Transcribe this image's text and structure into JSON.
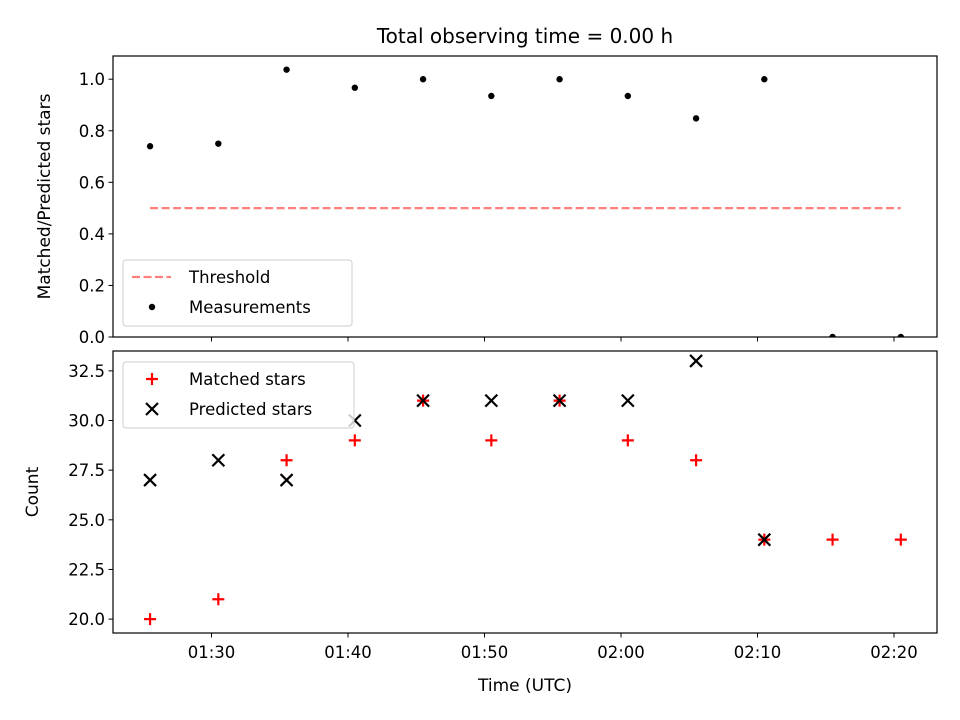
{
  "chart_data": [
    {
      "type": "scatter",
      "title": "Total observing time = 0.00 h",
      "xlabel": "",
      "ylabel": "Matched/Predicted stars",
      "ylim": [
        0,
        1.09
      ],
      "yticks": [
        "0.0",
        "0.2",
        "0.4",
        "0.6",
        "0.8",
        "1.0"
      ],
      "ytick_values": [
        0,
        0.2,
        0.4,
        0.6,
        0.8,
        1.0
      ],
      "legend": {
        "placement": "lower-left",
        "entries": [
          "Threshold",
          "Measurements"
        ]
      },
      "series": [
        {
          "name": "Threshold",
          "kind": "dashed-line",
          "color": "#ff7f7f",
          "x": [
            "01:25:30",
            "02:20:30"
          ],
          "y": [
            0.5,
            0.5
          ]
        },
        {
          "name": "Measurements",
          "kind": "dot",
          "color": "#000000",
          "x": [
            "01:25:30",
            "01:30:30",
            "01:35:30",
            "01:40:30",
            "01:45:30",
            "01:50:30",
            "01:55:30",
            "02:00:30",
            "02:05:30",
            "02:10:30",
            "02:15:30",
            "02:20:30"
          ],
          "y": [
            0.74,
            0.75,
            1.037,
            0.967,
            1.0,
            0.935,
            1.0,
            0.935,
            0.848,
            1.0,
            0.0,
            0.0
          ]
        }
      ]
    },
    {
      "type": "scatter",
      "title": "",
      "xlabel": "Time (UTC)",
      "ylabel": "Count",
      "ylim": [
        19.3,
        33.5
      ],
      "yticks": [
        "20.0",
        "22.5",
        "25.0",
        "27.5",
        "30.0",
        "32.5"
      ],
      "ytick_values": [
        20.0,
        22.5,
        25.0,
        27.5,
        30.0,
        32.5
      ],
      "xticks": [
        "01:30",
        "01:40",
        "01:50",
        "02:00",
        "02:10",
        "02:20"
      ],
      "xtick_values": [
        "01:30",
        "01:40",
        "01:50",
        "02:00",
        "02:10",
        "02:20"
      ],
      "legend": {
        "placement": "top-left",
        "entries": [
          "Matched stars",
          "Predicted stars"
        ]
      },
      "series": [
        {
          "name": "Matched stars",
          "kind": "plus",
          "color": "#ff0000",
          "x": [
            "01:25:30",
            "01:30:30",
            "01:35:30",
            "01:40:30",
            "01:45:30",
            "01:50:30",
            "01:55:30",
            "02:00:30",
            "02:05:30",
            "02:10:30",
            "02:15:30",
            "02:20:30"
          ],
          "y": [
            20,
            21,
            28,
            29,
            31,
            29,
            31,
            29,
            28,
            24,
            24,
            24
          ]
        },
        {
          "name": "Predicted stars",
          "kind": "x",
          "color": "#000000",
          "x": [
            "01:25:30",
            "01:30:30",
            "01:35:30",
            "01:40:30",
            "01:45:30",
            "01:50:30",
            "01:55:30",
            "02:00:30",
            "02:05:30",
            "02:10:30"
          ],
          "y": [
            27,
            28,
            27,
            30,
            31,
            31,
            31,
            31,
            33,
            24
          ]
        }
      ]
    }
  ]
}
